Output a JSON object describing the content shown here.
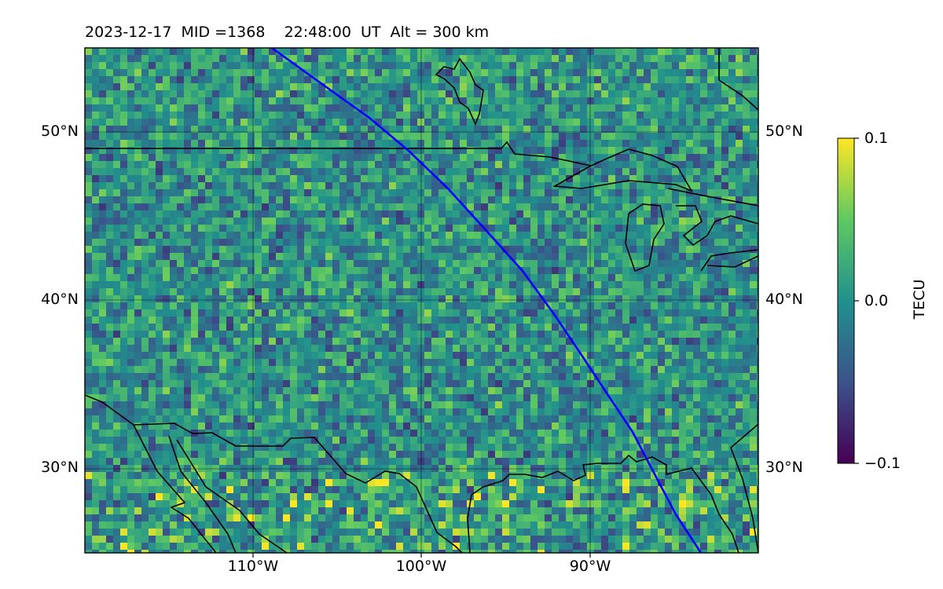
{
  "header": {
    "title": "2023-12-17  MID =1368    22:48:00  UT  Alt = 300 km"
  },
  "map": {
    "lat_labels": [
      "50°N",
      "40°N",
      "30°N"
    ],
    "lon_labels": [
      "110°W",
      "100°W",
      "90°W"
    ],
    "extent": {
      "lon_min": -120,
      "lon_max": -80,
      "lat_min": 25,
      "lat_max": 55
    },
    "track_color": "#0000ff",
    "coastline_color": "#000000",
    "field": "TEC perturbation",
    "colormap": "viridis"
  },
  "colorbar": {
    "label": "TECU",
    "ticks": [
      "0.1",
      "0.0",
      "−0.1"
    ],
    "vmin": -0.1,
    "vmax": 0.1
  }
}
